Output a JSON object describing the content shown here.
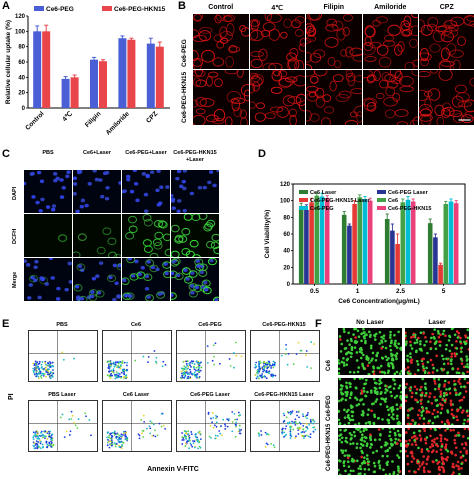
{
  "panels": {
    "A": {
      "letter": "A",
      "legend": [
        "Ce6-PEG",
        "Ce6-PEG-HKN15"
      ],
      "ylabel": "Relative cellular uptake (%)",
      "yticks": [
        "0",
        "20",
        "40",
        "60",
        "80",
        "100",
        "120"
      ]
    },
    "B": {
      "letter": "B",
      "columns": [
        "Control",
        "4℃",
        "Filipin",
        "Amiloride",
        "CPZ"
      ],
      "rows": [
        "Ce6-PEG",
        "Ce6-PEG-HKN15"
      ]
    },
    "C": {
      "letter": "C",
      "columns": [
        "PBS",
        "Ce6+Laser",
        "Ce6-PEG+Laser",
        "Ce6-PEG-HKN15 +Laser"
      ],
      "rows": [
        "DAPI",
        "DCFH",
        "Merge"
      ]
    },
    "D": {
      "letter": "D",
      "ylabel": "Cell Viability(%)",
      "xlabel": "Ce6 Concentration(μg/mL)",
      "yticks": [
        "0",
        "20",
        "40",
        "60",
        "80",
        "100",
        "120"
      ],
      "legend": [
        "Ce6 Laser",
        "Ce6-PEG Laser",
        "Ce6-PEG-HKN15 Laser",
        "Ce6",
        "Ce6-PEG",
        "Ce6-PEG-HKN15"
      ]
    },
    "E": {
      "letter": "E",
      "ylabel": "PI",
      "xlabel": "Annexin V-FITC",
      "top_titles": [
        "PBS",
        "Ce6",
        "Ce6-PEG",
        "Ce6-PEG-HKN15"
      ],
      "bottom_titles": [
        "PBS Laser",
        "Ce6 Laser",
        "Ce6-PEG Laser",
        "Ce6-PEG-HKN15 Laser"
      ]
    },
    "F": {
      "letter": "F",
      "columns": [
        "No Laser",
        "Laser"
      ],
      "rows": [
        "Ce6",
        "Ce6-PEG",
        "Ce6-PEG-HKN15"
      ]
    }
  },
  "chart_data": [
    {
      "type": "bar",
      "panel": "A",
      "categories": [
        "Control",
        "4℃",
        "Filipin",
        "Amiloride",
        "CPZ"
      ],
      "series": [
        {
          "name": "Ce6-PEG",
          "values": [
            100,
            38,
            63,
            91,
            84
          ],
          "errors": [
            7,
            3,
            3,
            3,
            7
          ],
          "color": "#4a5fd6"
        },
        {
          "name": "Ce6-PEG-HKN15",
          "values": [
            100,
            40,
            61,
            89,
            80
          ],
          "errors": [
            8,
            3,
            2,
            2,
            6
          ],
          "color": "#e8464a"
        }
      ],
      "ylabel": "Relative cellular uptake (%)",
      "ylim": [
        0,
        120
      ]
    },
    {
      "type": "bar",
      "panel": "D",
      "categories": [
        "0.5",
        "1",
        "2.5",
        "5"
      ],
      "series": [
        {
          "name": "Ce6 Laser",
          "values": [
            92,
            83,
            78,
            73
          ],
          "errors": [
            5,
            4,
            6,
            5
          ],
          "color": "#2f7d32"
        },
        {
          "name": "Ce6-PEG Laser",
          "values": [
            89,
            70,
            64,
            56
          ],
          "errors": [
            6,
            2,
            8,
            4
          ],
          "color": "#283593"
        },
        {
          "name": "Ce6-PEG-HKN15 Laser",
          "values": [
            98,
            96,
            48,
            23
          ],
          "errors": [
            5,
            4,
            12,
            2
          ],
          "color": "#e53935"
        },
        {
          "name": "Ce6",
          "values": [
            106,
            104,
            98,
            96
          ],
          "errors": [
            3,
            3,
            4,
            3
          ],
          "color": "#43a047"
        },
        {
          "name": "Ce6-PEG",
          "values": [
            105,
            102,
            101,
            99
          ],
          "errors": [
            4,
            3,
            4,
            3
          ],
          "color": "#00bcd4"
        },
        {
          "name": "Ce6-PEG-HKN15",
          "values": [
            103,
            100,
            99,
            97
          ],
          "errors": [
            3,
            3,
            3,
            3
          ],
          "color": "#ec407a"
        }
      ],
      "xlabel": "Ce6 Concentration(μg/mL)",
      "ylabel": "Cell Viability(%)",
      "ylim": [
        0,
        120
      ]
    }
  ]
}
